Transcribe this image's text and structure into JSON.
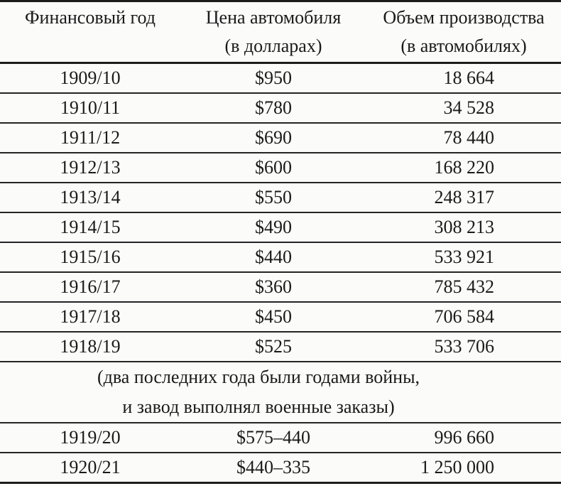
{
  "table": {
    "headers": [
      {
        "line1": "Финансовый год",
        "line2": ""
      },
      {
        "line1": "Цена автомобиля",
        "line2": "(в долларах)"
      },
      {
        "line1": "Объем производства",
        "line2": "(в автомобилях)"
      }
    ],
    "rows_before_note": [
      {
        "year": "1909/10",
        "price": "$950",
        "volume": "18 664"
      },
      {
        "year": "1910/11",
        "price": "$780",
        "volume": "34 528"
      },
      {
        "year": "1911/12",
        "price": "$690",
        "volume": "78 440"
      },
      {
        "year": "1912/13",
        "price": "$600",
        "volume": "168 220"
      },
      {
        "year": "1913/14",
        "price": "$550",
        "volume": "248 317"
      },
      {
        "year": "1914/15",
        "price": "$490",
        "volume": "308 213"
      },
      {
        "year": "1915/16",
        "price": "$440",
        "volume": "533 921"
      },
      {
        "year": "1916/17",
        "price": "$360",
        "volume": "785 432"
      },
      {
        "year": "1917/18",
        "price": "$450",
        "volume": "706 584"
      },
      {
        "year": "1918/19",
        "price": "$525",
        "volume": "533 706"
      }
    ],
    "note": {
      "line1": "(два последних года были годами войны,",
      "line2": "и завод выполнял военные заказы)"
    },
    "rows_after_note": [
      {
        "year": "1919/20",
        "price": "$575–440",
        "volume": "996 660"
      },
      {
        "year": "1920/21",
        "price": "$440–335",
        "volume": "1 250 000"
      }
    ]
  },
  "chart_data": {
    "type": "table",
    "title": "",
    "columns": [
      "Финансовый год",
      "Цена автомобиля (в долларах)",
      "Объем производства (в автомобилях)"
    ],
    "x": [
      "1909/10",
      "1910/11",
      "1911/12",
      "1912/13",
      "1913/14",
      "1914/15",
      "1915/16",
      "1916/17",
      "1917/18",
      "1918/19",
      "1919/20",
      "1920/21"
    ],
    "series": [
      {
        "name": "Цена автомобиля (в долларах)",
        "values": [
          "950",
          "780",
          "690",
          "600",
          "550",
          "490",
          "440",
          "360",
          "450",
          "525",
          "575–440",
          "440–335"
        ]
      },
      {
        "name": "Объем производства (в автомобилях)",
        "values": [
          18664,
          34528,
          78440,
          168220,
          248317,
          308213,
          533921,
          785432,
          706584,
          533706,
          996660,
          1250000
        ]
      }
    ],
    "annotations": [
      "(два последних года были годами войны, и завод выполнял военные заказы)"
    ]
  }
}
